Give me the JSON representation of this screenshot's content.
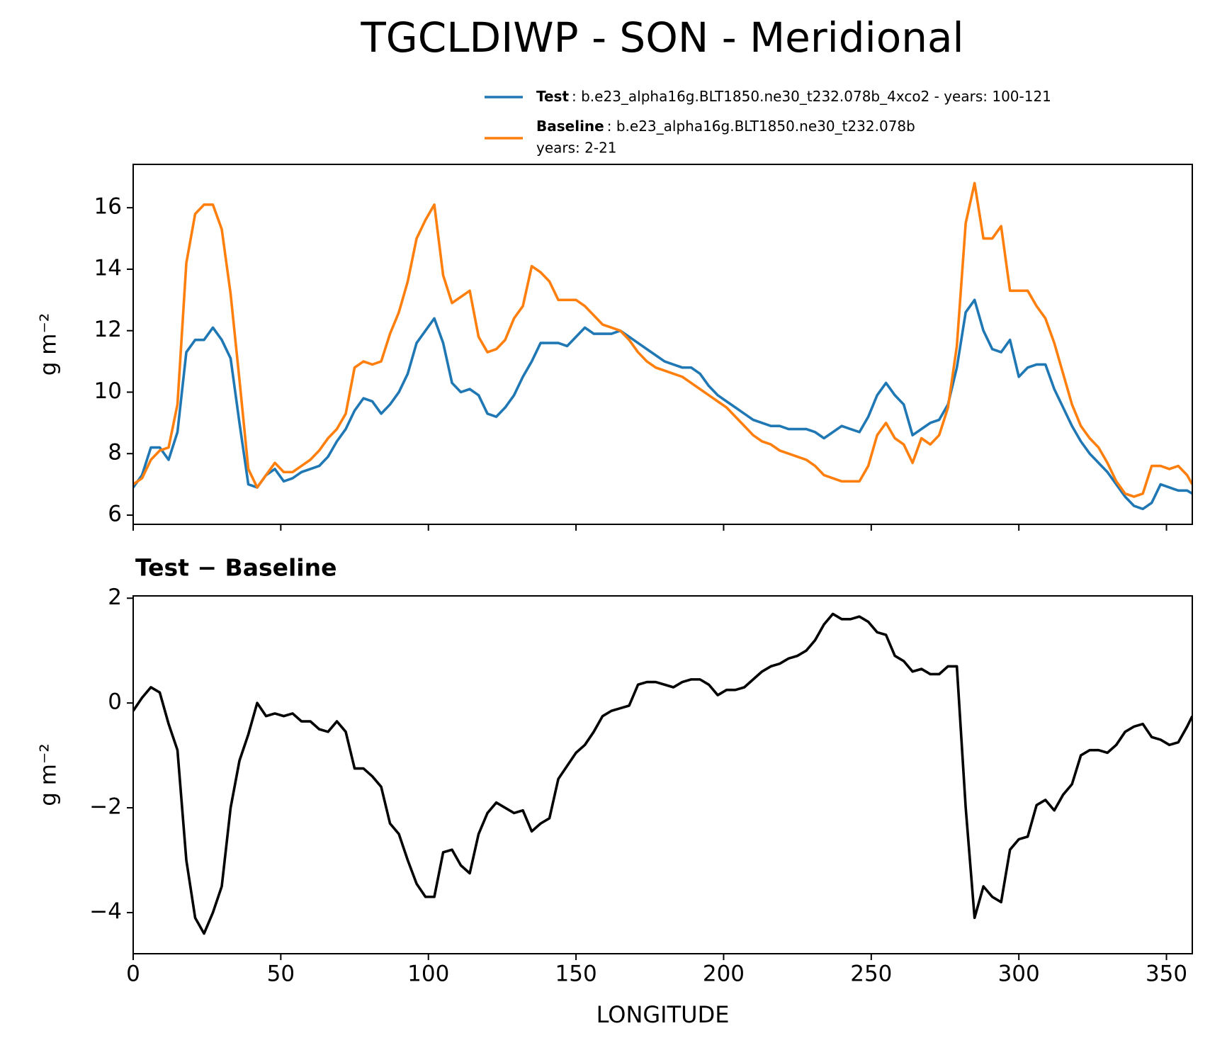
{
  "title": "TGCLDIWP - SON - Meridional",
  "chart_data": [
    {
      "type": "line",
      "ylabel": "g m⁻²",
      "legend": "upper right",
      "x": [
        0,
        3,
        6,
        9,
        12,
        15,
        18,
        21,
        24,
        27,
        30,
        33,
        36,
        39,
        42,
        45,
        48,
        51,
        54,
        57,
        60,
        63,
        66,
        69,
        72,
        75,
        78,
        81,
        84,
        87,
        90,
        93,
        96,
        99,
        102,
        105,
        108,
        111,
        114,
        117,
        120,
        123,
        126,
        129,
        132,
        135,
        138,
        141,
        144,
        147,
        150,
        153,
        156,
        159,
        162,
        165,
        168,
        171,
        174,
        177,
        180,
        183,
        186,
        189,
        192,
        195,
        198,
        201,
        204,
        207,
        210,
        213,
        216,
        219,
        222,
        225,
        228,
        231,
        234,
        237,
        240,
        243,
        246,
        249,
        252,
        255,
        258,
        261,
        264,
        267,
        270,
        273,
        276,
        279,
        282,
        285,
        288,
        291,
        294,
        297,
        300,
        303,
        306,
        309,
        312,
        315,
        318,
        321,
        324,
        327,
        330,
        333,
        336,
        339,
        342,
        345,
        348,
        351,
        354,
        357,
        358.75
      ],
      "xlim": [
        0,
        358.75
      ],
      "xticks": [
        0,
        50,
        100,
        150,
        200,
        250,
        300,
        350
      ],
      "ylim": [
        5.7,
        17.41
      ],
      "yticks": [
        6,
        8,
        10,
        12,
        14,
        16
      ],
      "series": [
        {
          "name": "Test",
          "description": [
            ": b.e23_alpha16g.BLT1850.ne30_t232.078b_4xco2 - years: 100-121"
          ],
          "color": "#1f77b4",
          "values": [
            6.9,
            7.3,
            8.2,
            8.2,
            7.8,
            8.7,
            11.3,
            11.7,
            11.7,
            12.1,
            11.7,
            11.1,
            9.0,
            7.0,
            6.9,
            7.3,
            7.5,
            7.1,
            7.2,
            7.4,
            7.5,
            7.6,
            7.9,
            8.4,
            8.8,
            9.4,
            9.8,
            9.7,
            9.3,
            9.6,
            10.0,
            10.6,
            11.6,
            12.0,
            12.4,
            11.6,
            10.3,
            10.0,
            10.1,
            9.9,
            9.3,
            9.2,
            9.5,
            9.9,
            10.5,
            11.0,
            11.6,
            11.6,
            11.6,
            11.5,
            11.8,
            12.1,
            11.9,
            11.9,
            11.9,
            12.0,
            11.8,
            11.6,
            11.4,
            11.2,
            11.0,
            10.9,
            10.8,
            10.8,
            10.6,
            10.2,
            9.9,
            9.7,
            9.5,
            9.3,
            9.1,
            9.0,
            8.9,
            8.9,
            8.8,
            8.8,
            8.8,
            8.7,
            8.5,
            8.7,
            8.9,
            8.8,
            8.7,
            9.2,
            9.9,
            10.3,
            9.9,
            9.6,
            8.6,
            8.8,
            9.0,
            9.1,
            9.6,
            10.8,
            12.6,
            13.0,
            12.0,
            11.4,
            11.3,
            11.7,
            10.5,
            10.8,
            10.9,
            10.9,
            10.1,
            9.5,
            8.9,
            8.4,
            8.0,
            7.7,
            7.4,
            7.0,
            6.6,
            6.3,
            6.2,
            6.4,
            7.0,
            6.9,
            6.8,
            6.8,
            6.7
          ]
        },
        {
          "name": "Baseline",
          "description": [
            ": b.e23_alpha16g.BLT1850.ne30_t232.078b",
            "years: 2-21"
          ],
          "color": "#ff7f0e",
          "values": [
            7.0,
            7.2,
            7.8,
            8.1,
            8.2,
            9.6,
            14.2,
            15.8,
            16.1,
            16.1,
            15.3,
            13.2,
            10.4,
            7.5,
            6.9,
            7.3,
            7.7,
            7.4,
            7.4,
            7.6,
            7.8,
            8.1,
            8.5,
            8.8,
            9.3,
            10.8,
            11.0,
            10.9,
            11.0,
            11.9,
            12.6,
            13.6,
            15.0,
            15.6,
            16.1,
            13.8,
            12.9,
            13.1,
            13.3,
            11.8,
            11.3,
            11.4,
            11.7,
            12.4,
            12.8,
            14.1,
            13.9,
            13.6,
            13.0,
            13.0,
            13.0,
            12.8,
            12.5,
            12.2,
            12.1,
            12.0,
            11.7,
            11.3,
            11.0,
            10.8,
            10.7,
            10.6,
            10.5,
            10.3,
            10.1,
            9.9,
            9.7,
            9.5,
            9.2,
            8.9,
            8.6,
            8.4,
            8.3,
            8.1,
            8.0,
            7.9,
            7.8,
            7.6,
            7.3,
            7.2,
            7.1,
            7.1,
            7.1,
            7.6,
            8.6,
            9.0,
            8.5,
            8.3,
            7.7,
            8.5,
            8.3,
            8.6,
            9.5,
            11.5,
            15.5,
            16.8,
            15.0,
            15.0,
            15.4,
            13.3,
            13.3,
            13.3,
            12.8,
            12.4,
            11.6,
            10.6,
            9.6,
            8.9,
            8.5,
            8.2,
            7.7,
            7.1,
            6.7,
            6.6,
            6.7,
            7.6,
            7.6,
            7.5,
            7.6,
            7.3,
            7.0
          ]
        }
      ]
    },
    {
      "type": "line",
      "title": "Test − Baseline",
      "ylabel": "g m⁻²",
      "xlabel": "LONGITUDE",
      "x": [
        0,
        3,
        6,
        9,
        12,
        15,
        18,
        21,
        24,
        27,
        30,
        33,
        36,
        39,
        42,
        45,
        48,
        51,
        54,
        57,
        60,
        63,
        66,
        69,
        72,
        75,
        78,
        81,
        84,
        87,
        90,
        93,
        96,
        99,
        102,
        105,
        108,
        111,
        114,
        117,
        120,
        123,
        126,
        129,
        132,
        135,
        138,
        141,
        144,
        147,
        150,
        153,
        156,
        159,
        162,
        165,
        168,
        171,
        174,
        177,
        180,
        183,
        186,
        189,
        192,
        195,
        198,
        201,
        204,
        207,
        210,
        213,
        216,
        219,
        222,
        225,
        228,
        231,
        234,
        237,
        240,
        243,
        246,
        249,
        252,
        255,
        258,
        261,
        264,
        267,
        270,
        273,
        276,
        279,
        282,
        285,
        288,
        291,
        294,
        297,
        300,
        303,
        306,
        309,
        312,
        315,
        318,
        321,
        324,
        327,
        330,
        333,
        336,
        339,
        342,
        345,
        348,
        351,
        354,
        357,
        358.75
      ],
      "xlim": [
        0,
        358.75
      ],
      "xticks": [
        0,
        50,
        100,
        150,
        200,
        250,
        300,
        350
      ],
      "ylim": [
        -4.785,
        2.044
      ],
      "yticks": [
        {
          "value": -4,
          "label": "−4"
        },
        {
          "value": -2,
          "label": "−2"
        },
        0,
        2
      ],
      "series": [
        {
          "name": "Test − Baseline",
          "color": "#000000",
          "values": [
            -0.15,
            0.1,
            0.3,
            0.2,
            -0.4,
            -0.9,
            -3.0,
            -4.1,
            -4.4,
            -4.0,
            -3.5,
            -2.0,
            -1.1,
            -0.6,
            0.0,
            -0.25,
            -0.2,
            -0.25,
            -0.2,
            -0.35,
            -0.35,
            -0.5,
            -0.55,
            -0.35,
            -0.55,
            -1.25,
            -1.25,
            -1.4,
            -1.6,
            -2.3,
            -2.5,
            -3.0,
            -3.45,
            -3.7,
            -3.7,
            -2.85,
            -2.8,
            -3.1,
            -3.25,
            -2.5,
            -2.1,
            -1.9,
            -2.0,
            -2.1,
            -2.05,
            -2.45,
            -2.3,
            -2.2,
            -1.45,
            -1.2,
            -0.95,
            -0.8,
            -0.55,
            -0.25,
            -0.15,
            -0.1,
            -0.05,
            0.35,
            0.4,
            0.4,
            0.35,
            0.3,
            0.4,
            0.45,
            0.45,
            0.35,
            0.15,
            0.25,
            0.25,
            0.3,
            0.45,
            0.6,
            0.7,
            0.75,
            0.85,
            0.9,
            1.0,
            1.2,
            1.5,
            1.7,
            1.6,
            1.6,
            1.65,
            1.55,
            1.35,
            1.3,
            0.9,
            0.8,
            0.6,
            0.65,
            0.55,
            0.55,
            0.7,
            0.7,
            -2.0,
            -4.1,
            -3.5,
            -3.7,
            -3.8,
            -2.8,
            -2.6,
            -2.55,
            -1.95,
            -1.85,
            -2.05,
            -1.75,
            -1.55,
            -1.0,
            -0.9,
            -0.9,
            -0.95,
            -0.8,
            -0.55,
            -0.45,
            -0.4,
            -0.65,
            -0.7,
            -0.8,
            -0.75,
            -0.45,
            -0.25
          ]
        }
      ]
    }
  ]
}
